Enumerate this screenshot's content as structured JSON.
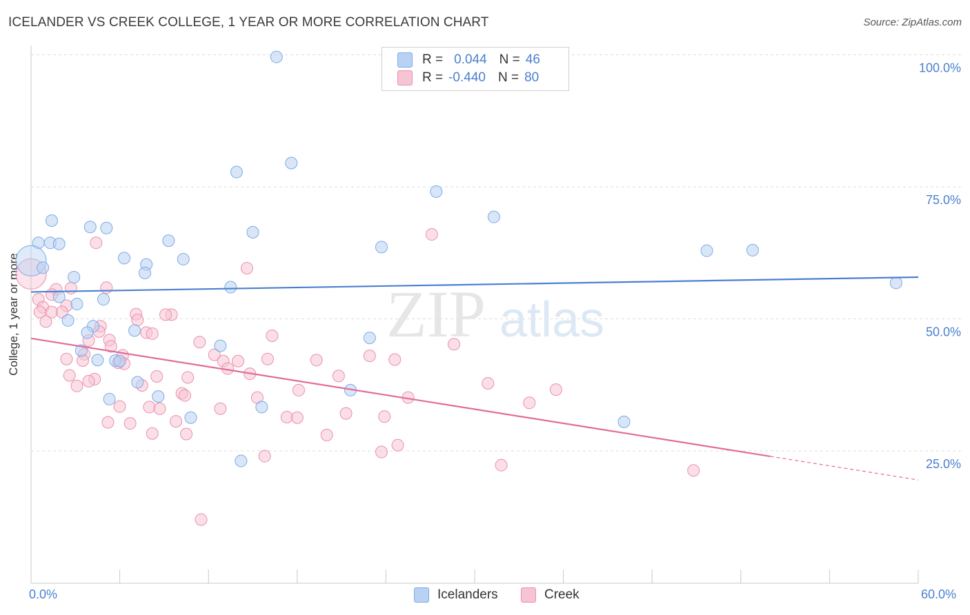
{
  "title": "ICELANDER VS CREEK COLLEGE, 1 YEAR OR MORE CORRELATION CHART",
  "source": "Source: ZipAtlas.com",
  "watermark": "ZIPatlas",
  "legend": {
    "r_label": "R =",
    "n_label": "N =",
    "series": [
      {
        "name": "Icelanders",
        "r": "0.044",
        "n": "46",
        "color": "#7aaae8",
        "fill": "#b9d2f3"
      },
      {
        "name": "Creek",
        "r": "-0.440",
        "n": "80",
        "color": "#ea8fac",
        "fill": "#f7c4d4"
      }
    ]
  },
  "chart_data": {
    "type": "scatter",
    "title": "ICELANDER VS CREEK COLLEGE, 1 YEAR OR MORE CORRELATION CHART",
    "xlabel": "",
    "ylabel": "College, 1 year or more",
    "xlim": [
      0,
      60
    ],
    "ylim": [
      0,
      100
    ],
    "x_tick_labels": [
      "0.0%",
      "60.0%"
    ],
    "y_tick_labels": [
      "100.0%",
      "75.0%",
      "50.0%",
      "25.0%"
    ],
    "y_tick_values": [
      100,
      75,
      50,
      25
    ],
    "grid": true,
    "series": [
      {
        "name": "Icelanders",
        "color": "#4a7fd0",
        "trend": {
          "x0": 0,
          "y0": 55.1,
          "x1": 60,
          "y1": 57.9,
          "dashed_from": null
        },
        "points": [
          [
            16.6,
            99.6
          ],
          [
            17.6,
            79.5
          ],
          [
            13.9,
            77.8
          ],
          [
            27.4,
            74.1
          ],
          [
            31.3,
            69.3
          ],
          [
            1.4,
            68.6
          ],
          [
            4.0,
            67.4
          ],
          [
            5.1,
            67.2
          ],
          [
            15.0,
            66.4
          ],
          [
            9.3,
            64.8
          ],
          [
            1.3,
            64.4
          ],
          [
            0.5,
            64.4
          ],
          [
            1.9,
            64.2
          ],
          [
            23.7,
            63.6
          ],
          [
            45.7,
            62.9
          ],
          [
            48.8,
            63.0
          ],
          [
            0.0,
            61.0
          ],
          [
            6.3,
            61.5
          ],
          [
            10.3,
            61.3
          ],
          [
            7.8,
            60.3
          ],
          [
            0.8,
            59.7
          ],
          [
            7.7,
            58.7
          ],
          [
            2.9,
            57.9
          ],
          [
            58.5,
            56.8
          ],
          [
            13.5,
            56.0
          ],
          [
            1.9,
            54.2
          ],
          [
            4.9,
            53.7
          ],
          [
            3.1,
            52.8
          ],
          [
            2.5,
            49.7
          ],
          [
            4.2,
            48.6
          ],
          [
            3.8,
            47.4
          ],
          [
            7.0,
            47.8
          ],
          [
            12.8,
            44.9
          ],
          [
            22.9,
            46.4
          ],
          [
            3.4,
            44.0
          ],
          [
            4.5,
            42.2
          ],
          [
            5.7,
            42.1
          ],
          [
            7.2,
            38.0
          ],
          [
            21.6,
            36.5
          ],
          [
            5.3,
            34.8
          ],
          [
            8.6,
            35.3
          ],
          [
            15.6,
            33.3
          ],
          [
            10.8,
            31.3
          ],
          [
            40.1,
            30.5
          ],
          [
            14.2,
            23.1
          ],
          [
            6.0,
            42.0
          ]
        ]
      },
      {
        "name": "Creek",
        "color": "#e26b97",
        "trend": {
          "x0": 0,
          "y0": 46.3,
          "x1": 60,
          "y1": 19.5,
          "dashed_from": 50
        },
        "points": [
          [
            0.0,
            58.5
          ],
          [
            27.1,
            66.0
          ],
          [
            4.4,
            64.4
          ],
          [
            14.6,
            59.6
          ],
          [
            1.7,
            55.6
          ],
          [
            2.7,
            55.8
          ],
          [
            5.1,
            55.9
          ],
          [
            1.4,
            54.6
          ],
          [
            0.5,
            53.7
          ],
          [
            0.8,
            52.2
          ],
          [
            2.4,
            52.5
          ],
          [
            0.6,
            51.3
          ],
          [
            1.4,
            51.3
          ],
          [
            9.5,
            50.8
          ],
          [
            2.1,
            51.3
          ],
          [
            7.1,
            50.9
          ],
          [
            9.1,
            50.8
          ],
          [
            7.2,
            49.8
          ],
          [
            1.0,
            49.5
          ],
          [
            4.7,
            48.6
          ],
          [
            7.8,
            47.4
          ],
          [
            8.2,
            47.2
          ],
          [
            16.3,
            46.8
          ],
          [
            4.6,
            47.6
          ],
          [
            3.9,
            45.9
          ],
          [
            5.3,
            46.0
          ],
          [
            11.4,
            45.6
          ],
          [
            28.6,
            45.2
          ],
          [
            5.4,
            44.8
          ],
          [
            6.2,
            43.1
          ],
          [
            12.4,
            43.2
          ],
          [
            3.6,
            43.3
          ],
          [
            22.9,
            43.0
          ],
          [
            24.6,
            42.3
          ],
          [
            16.0,
            42.4
          ],
          [
            19.3,
            42.2
          ],
          [
            2.4,
            42.4
          ],
          [
            3.5,
            42.1
          ],
          [
            13.0,
            42.0
          ],
          [
            14.0,
            42.0
          ],
          [
            6.3,
            41.5
          ],
          [
            5.9,
            41.7
          ],
          [
            13.3,
            40.6
          ],
          [
            14.8,
            39.6
          ],
          [
            2.6,
            39.3
          ],
          [
            8.5,
            39.1
          ],
          [
            10.6,
            38.9
          ],
          [
            4.3,
            38.6
          ],
          [
            3.9,
            38.2
          ],
          [
            20.8,
            39.2
          ],
          [
            30.9,
            37.8
          ],
          [
            3.1,
            37.3
          ],
          [
            7.5,
            37.4
          ],
          [
            18.1,
            36.5
          ],
          [
            35.5,
            36.6
          ],
          [
            10.2,
            35.9
          ],
          [
            10.4,
            35.5
          ],
          [
            15.3,
            35.1
          ],
          [
            25.5,
            35.1
          ],
          [
            33.7,
            34.1
          ],
          [
            6.0,
            33.4
          ],
          [
            8.0,
            33.3
          ],
          [
            8.7,
            33.0
          ],
          [
            12.8,
            33.0
          ],
          [
            21.3,
            32.1
          ],
          [
            23.9,
            31.5
          ],
          [
            17.3,
            31.4
          ],
          [
            18.0,
            31.3
          ],
          [
            5.2,
            30.4
          ],
          [
            6.7,
            30.2
          ],
          [
            9.8,
            30.6
          ],
          [
            8.2,
            28.3
          ],
          [
            10.5,
            28.2
          ],
          [
            20.0,
            28.0
          ],
          [
            24.8,
            26.1
          ],
          [
            23.7,
            24.8
          ],
          [
            15.8,
            24.0
          ],
          [
            31.8,
            22.3
          ],
          [
            44.8,
            21.3
          ],
          [
            11.5,
            12.0
          ]
        ]
      }
    ]
  }
}
